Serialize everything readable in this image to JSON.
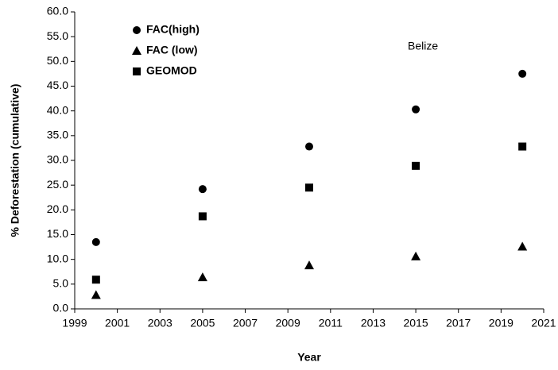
{
  "chart_data": {
    "type": "scatter",
    "annotation": "Belize",
    "xlabel": "Year",
    "ylabel": "% Deforestation (cumulative)",
    "series": [
      {
        "name": "FAC(high)",
        "marker": "circle",
        "color": "#000000",
        "x": [
          2000,
          2005,
          2010,
          2015,
          2020
        ],
        "values": [
          13.5,
          24.2,
          32.8,
          40.3,
          47.5
        ]
      },
      {
        "name": "FAC (low)",
        "marker": "triangle",
        "color": "#000000",
        "x": [
          2000,
          2005,
          2010,
          2015,
          2020
        ],
        "values": [
          2.8,
          6.4,
          8.8,
          10.6,
          12.6
        ]
      },
      {
        "name": "GEOMOD",
        "marker": "square",
        "color": "#000000",
        "x": [
          2000,
          2005,
          2010,
          2015,
          2020
        ],
        "values": [
          5.9,
          18.7,
          24.5,
          28.9,
          32.8
        ]
      }
    ],
    "xlim": [
      1999,
      2021
    ],
    "xticks": [
      1999,
      2001,
      2003,
      2005,
      2007,
      2009,
      2011,
      2013,
      2015,
      2017,
      2019,
      2021
    ],
    "ylim": [
      0,
      60
    ],
    "yticks": [
      {
        "value": 0,
        "label": "0.0"
      },
      {
        "value": 5,
        "label": "5.0"
      },
      {
        "value": 10,
        "label": "10.0"
      },
      {
        "value": 15,
        "label": "15.0"
      },
      {
        "value": 20,
        "label": "20.0"
      },
      {
        "value": 25,
        "label": "25.0"
      },
      {
        "value": 30,
        "label": "30.0"
      },
      {
        "value": 35,
        "label": "35.0"
      },
      {
        "value": 40,
        "label": "40.0"
      },
      {
        "value": 45,
        "label": "45.0"
      },
      {
        "value": 50,
        "label": "50.0"
      },
      {
        "value": 55,
        "label": "55.0"
      },
      {
        "value": 60,
        "label": "60.0"
      }
    ],
    "grid": false,
    "legend": "upper left"
  }
}
